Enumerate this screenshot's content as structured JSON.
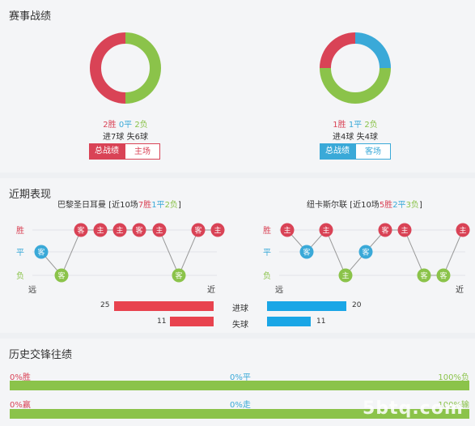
{
  "sections": {
    "record_title": "赛事战绩",
    "recent_title": "近期表现",
    "history_title": "历史交锋往绩"
  },
  "home": {
    "donut": {
      "win": 2,
      "draw": 0,
      "loss": 2
    },
    "win_text": "2胜",
    "draw_text": "0平",
    "loss_text": "2负",
    "goals_text": "进7球",
    "conceded_text": "失6球",
    "tab_active": "总战绩",
    "tab_other": "主场",
    "form_title_prefix": "巴黎圣日耳曼 [近10场",
    "form_w": "7胜",
    "form_d": "1平",
    "form_l": "2负",
    "form_suffix": "]",
    "form": [
      {
        "r": "D",
        "v": "客"
      },
      {
        "r": "L",
        "v": "客"
      },
      {
        "r": "W",
        "v": "客"
      },
      {
        "r": "W",
        "v": "主"
      },
      {
        "r": "W",
        "v": "主"
      },
      {
        "r": "W",
        "v": "客"
      },
      {
        "r": "W",
        "v": "主"
      },
      {
        "r": "L",
        "v": "客"
      },
      {
        "r": "W",
        "v": "客"
      },
      {
        "r": "W",
        "v": "主"
      }
    ],
    "goals_for": 25,
    "goals_against": 11
  },
  "away": {
    "donut": {
      "win": 1,
      "draw": 1,
      "loss": 2
    },
    "win_text": "1胜",
    "draw_text": "1平",
    "loss_text": "2负",
    "goals_text": "进4球",
    "conceded_text": "失4球",
    "tab_active": "总战绩",
    "tab_other": "客场",
    "form_title_prefix": "纽卡斯尔联 [近10场",
    "form_w": "5胜",
    "form_d": "2平",
    "form_l": "3负",
    "form_suffix": "]",
    "form": [
      {
        "r": "W",
        "v": "主"
      },
      {
        "r": "D",
        "v": "客"
      },
      {
        "r": "W",
        "v": "主"
      },
      {
        "r": "L",
        "v": "主"
      },
      {
        "r": "D",
        "v": "客"
      },
      {
        "r": "W",
        "v": "客"
      },
      {
        "r": "W",
        "v": "主"
      },
      {
        "r": "L",
        "v": "客"
      },
      {
        "r": "L",
        "v": "客"
      },
      {
        "r": "W",
        "v": "主"
      }
    ],
    "goals_for": 20,
    "goals_against": 11
  },
  "form_axis": {
    "win": "胜",
    "draw": "平",
    "loss": "负",
    "far": "远",
    "near": "近"
  },
  "goals_labels": {
    "for": "进球",
    "against": "失球"
  },
  "history": {
    "row1": {
      "left": "0%胜",
      "mid": "0%平",
      "right": "100%负"
    },
    "row2": {
      "left": "0%赢",
      "mid": "0%走",
      "right": "100%输"
    }
  },
  "watermark": "5btq.com",
  "colors": {
    "win": "#d94356",
    "draw": "#3aa9d8",
    "loss": "#8bc34a",
    "goals_for": "#e8434f",
    "goals_against": "#1aa6e6"
  }
}
